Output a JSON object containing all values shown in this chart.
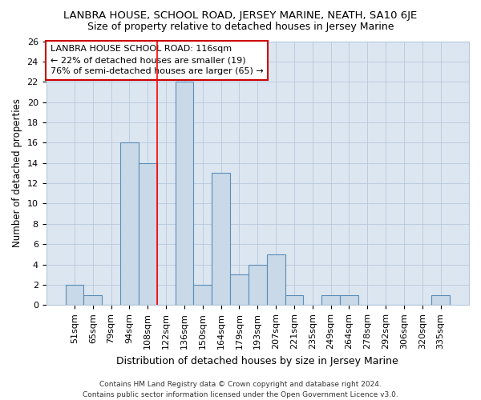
{
  "title": "LANBRA HOUSE, SCHOOL ROAD, JERSEY MARINE, NEATH, SA10 6JE",
  "subtitle": "Size of property relative to detached houses in Jersey Marine",
  "xlabel": "Distribution of detached houses by size in Jersey Marine",
  "ylabel": "Number of detached properties",
  "categories": [
    "51sqm",
    "65sqm",
    "79sqm",
    "94sqm",
    "108sqm",
    "122sqm",
    "136sqm",
    "150sqm",
    "164sqm",
    "179sqm",
    "193sqm",
    "207sqm",
    "221sqm",
    "235sqm",
    "249sqm",
    "264sqm",
    "278sqm",
    "292sqm",
    "306sqm",
    "320sqm",
    "335sqm"
  ],
  "values": [
    2,
    1,
    0,
    16,
    14,
    0,
    22,
    2,
    13,
    3,
    4,
    5,
    1,
    0,
    1,
    1,
    0,
    0,
    0,
    0,
    1
  ],
  "bar_color": "#c9d9e8",
  "bar_edge_color": "#5b8db8",
  "red_line_index": 5.0,
  "annotation_text": "LANBRA HOUSE SCHOOL ROAD: 116sqm\n← 22% of detached houses are smaller (19)\n76% of semi-detached houses are larger (65) →",
  "annotation_box_facecolor": "#ffffff",
  "annotation_box_edgecolor": "#cc0000",
  "ylim": [
    0,
    26
  ],
  "yticks": [
    0,
    2,
    4,
    6,
    8,
    10,
    12,
    14,
    16,
    18,
    20,
    22,
    24,
    26
  ],
  "footer": "Contains HM Land Registry data © Crown copyright and database right 2024.\nContains public sector information licensed under the Open Government Licence v3.0.",
  "fig_bg_color": "#ffffff",
  "plot_bg_color": "#dce6f0",
  "title_fontsize": 9.5,
  "subtitle_fontsize": 9,
  "xlabel_fontsize": 9,
  "ylabel_fontsize": 8.5,
  "tick_fontsize": 8,
  "annotation_fontsize": 8,
  "footer_fontsize": 6.5
}
